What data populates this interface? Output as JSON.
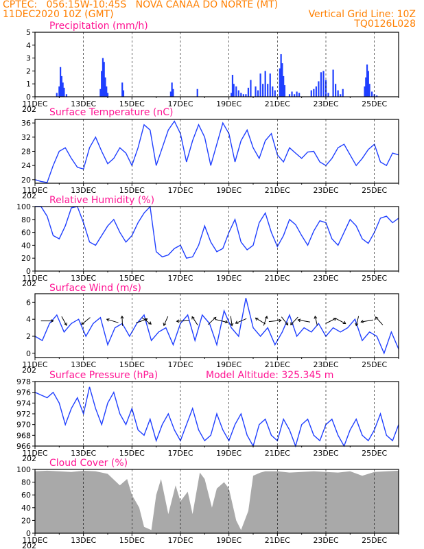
{
  "header": {
    "line1_left": "CPTEC:   056:15W-10:45S   NOVA CANAA DO NORTE (MT)",
    "line2_left": "11DEC2020 10Z (GMT)",
    "line2_right": "Vertical Grid Line: 10Z",
    "line3_right": "TQ0126L028"
  },
  "x_ticks": [
    "11DEC",
    "13DEC",
    "15DEC",
    "17DEC",
    "19DEC",
    "21DEC",
    "23DEC",
    "25DEC"
  ],
  "x_year_label": "202",
  "colors": {
    "header": "#ff7f00",
    "title": "#ff1493",
    "line": "#1f3fff",
    "bar": "#1f3fff",
    "cloud": "#a9a9a9",
    "grid": "#000000"
  },
  "chart_data": [
    {
      "type": "bar",
      "title": "Precipitation (mm/h)",
      "ylim": [
        0,
        5
      ],
      "yticks": [
        "0",
        "1",
        "2",
        "3",
        "4",
        "5"
      ],
      "grid": "vertical dashed at 10Z",
      "x": [
        0.9,
        1.0,
        1.05,
        1.1,
        1.15,
        1.2,
        1.3,
        2.7,
        2.75,
        2.8,
        2.85,
        2.9,
        2.95,
        3.0,
        3.6,
        3.65,
        5.6,
        5.65,
        5.7,
        6.7,
        8.1,
        8.15,
        8.2,
        8.3,
        8.4,
        8.5,
        8.6,
        8.7,
        8.8,
        8.9,
        9.1,
        9.2,
        9.3,
        9.4,
        9.5,
        9.6,
        9.7,
        9.8,
        9.9,
        10.1,
        10.15,
        10.2,
        10.25,
        10.3,
        10.5,
        10.6,
        10.7,
        10.8,
        10.9,
        11.4,
        11.5,
        11.6,
        11.7,
        11.8,
        11.9,
        12.0,
        12.1,
        12.3,
        12.4,
        12.5,
        12.6,
        12.7,
        13.6,
        13.65,
        13.7,
        13.75,
        13.8,
        13.9,
        14.0,
        14.1
      ],
      "values": [
        0.3,
        0.8,
        2.3,
        1.6,
        1.1,
        0.7,
        0.2,
        0.6,
        2.0,
        3.0,
        2.7,
        1.5,
        0.8,
        0.3,
        1.1,
        0.5,
        0.4,
        1.1,
        0.6,
        0.6,
        0.3,
        1.7,
        1.0,
        0.8,
        0.5,
        0.3,
        0.2,
        0.2,
        0.7,
        1.3,
        0.8,
        0.5,
        1.8,
        1.0,
        2.0,
        1.0,
        1.8,
        0.8,
        0.5,
        2.2,
        3.3,
        2.6,
        1.6,
        0.9,
        0.2,
        0.4,
        0.2,
        0.4,
        0.3,
        0.5,
        0.6,
        0.8,
        1.2,
        1.9,
        2.0,
        1.3,
        0.3,
        2.1,
        1.0,
        0.5,
        0.2,
        0.6,
        0.8,
        1.5,
        2.5,
        2.0,
        1.0,
        0.4,
        0.2,
        0.1
      ]
    },
    {
      "type": "line",
      "title": "Surface Temperature (nC)",
      "ylim": [
        19,
        37
      ],
      "yticks": [
        "20",
        "24",
        "28",
        "32",
        "36"
      ],
      "x": [
        0,
        0.25,
        0.5,
        0.75,
        1.0,
        1.25,
        1.5,
        1.75,
        2.0,
        2.25,
        2.5,
        2.75,
        3.0,
        3.25,
        3.5,
        3.75,
        4.0,
        4.25,
        4.5,
        4.75,
        5.0,
        5.25,
        5.5,
        5.75,
        6.0,
        6.25,
        6.5,
        6.75,
        7.0,
        7.25,
        7.5,
        7.75,
        8.0,
        8.25,
        8.5,
        8.75,
        9.0,
        9.25,
        9.5,
        9.75,
        10.0,
        10.25,
        10.5,
        10.75,
        11.0,
        11.25,
        11.5,
        11.75,
        12.0,
        12.25,
        12.5,
        12.75,
        13.0,
        13.25,
        13.5,
        13.75,
        14.0,
        14.25,
        14.5,
        14.75,
        15.0
      ],
      "values": [
        20,
        19.5,
        19.2,
        24,
        28,
        29,
        26,
        23.5,
        23,
        29,
        32,
        28,
        24.5,
        26,
        29,
        27.5,
        24,
        29,
        35.5,
        34,
        24,
        29,
        34,
        36.5,
        33,
        25,
        31,
        35.5,
        32,
        24,
        30,
        36,
        33,
        25,
        31,
        34,
        29,
        26,
        31,
        33,
        27,
        25,
        29,
        27.5,
        26,
        27.8,
        28,
        25,
        24,
        26,
        29,
        30,
        27,
        24,
        26,
        28.5,
        30,
        25,
        24,
        27.5,
        27
      ]
    },
    {
      "type": "line",
      "title": "Relative Humidity (%)",
      "ylim": [
        0,
        100
      ],
      "yticks": [
        "0",
        "20",
        "40",
        "60",
        "80",
        "100"
      ],
      "x": [
        0,
        0.25,
        0.5,
        0.75,
        1.0,
        1.25,
        1.5,
        1.75,
        2.0,
        2.25,
        2.5,
        2.75,
        3.0,
        3.25,
        3.5,
        3.75,
        4.0,
        4.25,
        4.5,
        4.75,
        5.0,
        5.25,
        5.5,
        5.75,
        6.0,
        6.25,
        6.5,
        6.75,
        7.0,
        7.25,
        7.5,
        7.75,
        8.0,
        8.25,
        8.5,
        8.75,
        9.0,
        9.25,
        9.5,
        9.75,
        10.0,
        10.25,
        10.5,
        10.75,
        11.0,
        11.25,
        11.5,
        11.75,
        12.0,
        12.25,
        12.5,
        12.75,
        13.0,
        13.25,
        13.5,
        13.75,
        14.0,
        14.25,
        14.5,
        14.75,
        15.0
      ],
      "values": [
        100,
        100,
        85,
        55,
        50,
        70,
        98,
        100,
        75,
        45,
        40,
        55,
        70,
        80,
        60,
        45,
        55,
        75,
        90,
        100,
        30,
        22,
        25,
        35,
        40,
        20,
        22,
        40,
        70,
        45,
        30,
        35,
        60,
        80,
        45,
        33,
        40,
        75,
        90,
        60,
        38,
        55,
        80,
        72,
        55,
        40,
        62,
        78,
        75,
        50,
        40,
        60,
        80,
        70,
        50,
        43,
        60,
        82,
        85,
        75,
        82
      ]
    },
    {
      "type": "line",
      "title": "Surface Wind (m/s)",
      "ylim": [
        -0.5,
        7
      ],
      "yticks": [
        "0",
        "2",
        "4",
        "6"
      ],
      "x": [
        0,
        0.3,
        0.6,
        0.9,
        1.2,
        1.5,
        1.8,
        2.1,
        2.4,
        2.7,
        3.0,
        3.3,
        3.6,
        3.9,
        4.2,
        4.5,
        4.8,
        5.1,
        5.4,
        5.7,
        6.0,
        6.3,
        6.6,
        6.9,
        7.2,
        7.5,
        7.8,
        8.1,
        8.4,
        8.7,
        9.0,
        9.3,
        9.6,
        9.9,
        10.2,
        10.5,
        10.8,
        11.1,
        11.4,
        11.7,
        12.0,
        12.3,
        12.6,
        12.9,
        13.2,
        13.5,
        13.8,
        14.1,
        14.4,
        14.7,
        15.0
      ],
      "values": [
        2,
        1.5,
        3.5,
        4.5,
        2.5,
        3.5,
        4,
        2,
        3.5,
        4.2,
        1,
        3,
        3.5,
        2,
        3.5,
        4.5,
        1.5,
        2.5,
        3,
        1,
        3.5,
        4.5,
        1.5,
        4.5,
        3.5,
        1,
        5,
        3,
        2,
        6.5,
        3,
        2,
        3,
        1,
        2.5,
        4.5,
        2,
        3,
        2.5,
        3.5,
        2,
        3,
        2.5,
        3,
        4,
        1.5,
        2.5,
        2,
        0,
        2.5,
        0.5
      ],
      "arrows_x": [
        0.5,
        1.2,
        2.1,
        3.2,
        3.6,
        4.4,
        4.6,
        5.4,
        6.1,
        6.6,
        7.3,
        7.7,
        8.1,
        8.5,
        9.3,
        9.5,
        9.9,
        10.3,
        10.7,
        11.1,
        11.6,
        12.2,
        12.6,
        13.3,
        13.7,
        14.2
      ]
    },
    {
      "type": "line",
      "title": "Surface Pressure (hPa)",
      "subtitle": "Model Altitude: 325.345 m",
      "ylim": [
        966,
        978
      ],
      "yticks": [
        "966",
        "968",
        "970",
        "972",
        "974",
        "976",
        "978"
      ],
      "x": [
        0,
        0.25,
        0.5,
        0.75,
        1.0,
        1.25,
        1.5,
        1.75,
        2.0,
        2.25,
        2.5,
        2.75,
        3.0,
        3.25,
        3.5,
        3.75,
        4.0,
        4.25,
        4.5,
        4.75,
        5.0,
        5.25,
        5.5,
        5.75,
        6.0,
        6.25,
        6.5,
        6.75,
        7.0,
        7.25,
        7.5,
        7.75,
        8.0,
        8.25,
        8.5,
        8.75,
        9.0,
        9.25,
        9.5,
        9.75,
        10.0,
        10.25,
        10.5,
        10.75,
        11.0,
        11.25,
        11.5,
        11.75,
        12.0,
        12.25,
        12.5,
        12.75,
        13.0,
        13.25,
        13.5,
        13.75,
        14.0,
        14.25,
        14.5,
        14.75,
        15.0
      ],
      "values": [
        976,
        975.5,
        975,
        976,
        974,
        970,
        973,
        975,
        972,
        977,
        973,
        970,
        974,
        976,
        972,
        970,
        973,
        969,
        968,
        971,
        967,
        970,
        972,
        969,
        967,
        970,
        973,
        969,
        967,
        968,
        972,
        969,
        967,
        970,
        972,
        968,
        966,
        970,
        971,
        968,
        967,
        971,
        969,
        966,
        970,
        971,
        968,
        967,
        970,
        971,
        968,
        966,
        969,
        971,
        968,
        967,
        969,
        972,
        968,
        967,
        970
      ]
    },
    {
      "type": "area",
      "title": "Cloud Cover (%)",
      "ylim": [
        0,
        100
      ],
      "yticks": [
        "0",
        "20",
        "40",
        "60",
        "80",
        "100"
      ],
      "x": [
        0,
        0.5,
        1.0,
        1.5,
        2.0,
        2.5,
        3.0,
        3.5,
        3.8,
        4.0,
        4.3,
        4.5,
        4.8,
        5.0,
        5.2,
        5.5,
        5.8,
        6.0,
        6.3,
        6.5,
        6.8,
        7.0,
        7.3,
        7.5,
        7.8,
        8.0,
        8.3,
        8.5,
        8.8,
        9.0,
        9.3,
        9.5,
        10.0,
        10.5,
        11.0,
        11.5,
        12.0,
        12.5,
        13.0,
        13.5,
        14.0,
        14.5,
        15.0
      ],
      "values": [
        97,
        98,
        97,
        96,
        98,
        97,
        93,
        75,
        85,
        60,
        40,
        10,
        5,
        60,
        85,
        30,
        75,
        50,
        65,
        30,
        95,
        85,
        40,
        70,
        80,
        70,
        20,
        5,
        35,
        90,
        95,
        97,
        97,
        95,
        96,
        97,
        96,
        95,
        97,
        90,
        96,
        97,
        98
      ]
    }
  ]
}
